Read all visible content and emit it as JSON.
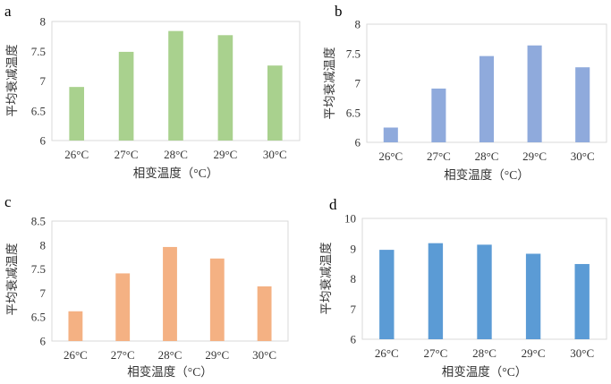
{
  "chart_data": [
    {
      "panel": "a",
      "type": "bar",
      "categories": [
        "26°C",
        "27°C",
        "28°C",
        "29°C",
        "30°C"
      ],
      "values": [
        6.9,
        7.49,
        7.84,
        7.77,
        7.26
      ],
      "xlabel": "相变温度（°C）",
      "ylabel": "平均衰减温度",
      "ylim": [
        6,
        8
      ],
      "yticks": [
        "6",
        "6.5",
        "7",
        "7.5",
        "8"
      ],
      "color": "#a9d18e",
      "grid": false
    },
    {
      "panel": "b",
      "type": "bar",
      "categories": [
        "26°C",
        "27°C",
        "28°C",
        "29°C",
        "30°C"
      ],
      "values": [
        6.25,
        6.91,
        7.46,
        7.64,
        7.27
      ],
      "xlabel": "相变温度（°C）",
      "ylabel": "平均衰减温度",
      "ylim": [
        6,
        8
      ],
      "yticks": [
        "6",
        "6.5",
        "7",
        "7.5",
        "8"
      ],
      "color": "#8faadc",
      "grid": false
    },
    {
      "panel": "c",
      "type": "bar",
      "categories": [
        "26°C",
        "27°C",
        "28°C",
        "29°C",
        "30°C"
      ],
      "values": [
        6.62,
        7.41,
        7.96,
        7.72,
        7.14
      ],
      "xlabel": "相变温度（°C）",
      "ylabel": "平均衰减温度",
      "ylim": [
        6,
        8.5
      ],
      "yticks": [
        "6",
        "6.5",
        "7",
        "7.5",
        "8",
        "8.5"
      ],
      "color": "#f4b183",
      "grid": false
    },
    {
      "panel": "d",
      "type": "bar",
      "categories": [
        "26°C",
        "27°C",
        "28°C",
        "29°C",
        "30°C"
      ],
      "values": [
        8.96,
        9.18,
        9.13,
        8.83,
        8.49
      ],
      "xlabel": "相变温度（°C）",
      "ylabel": "平均衰减温度",
      "ylim": [
        6,
        10
      ],
      "yticks": [
        "6",
        "7",
        "8",
        "9",
        "10"
      ],
      "color": "#5b9bd5",
      "grid": false
    }
  ]
}
